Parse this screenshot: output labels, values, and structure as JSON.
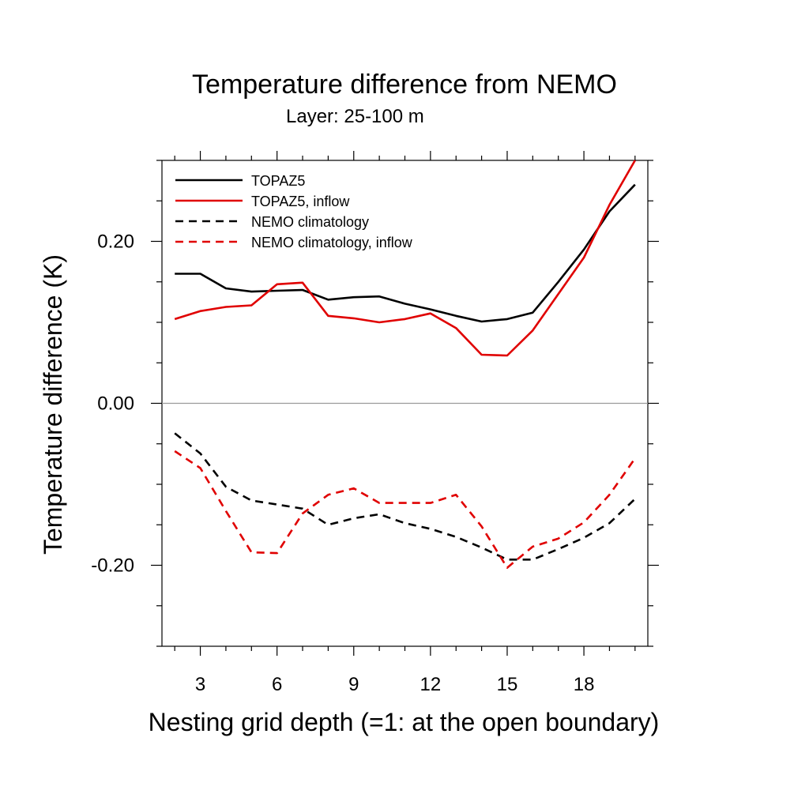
{
  "chart_data": {
    "type": "line",
    "title": "Temperature difference from NEMO",
    "subtitle": "Layer: 25-100 m",
    "xlabel": "Nesting grid depth (=1: at the open boundary)",
    "ylabel": "Temperature difference (K)",
    "xlim": [
      1.5,
      20.5
    ],
    "ylim": [
      -0.3,
      0.3
    ],
    "x_ticks": [
      3,
      6,
      9,
      12,
      15,
      18
    ],
    "x_tick_labels": [
      "3",
      "6",
      "9",
      "12",
      "15",
      "18"
    ],
    "y_ticks": [
      0.2,
      0.0,
      -0.2
    ],
    "y_tick_labels": [
      "0.20",
      "0.00",
      "-0.20"
    ],
    "zero_line": true,
    "grid": false,
    "legend_position": "top-left",
    "x": [
      2,
      3,
      4,
      5,
      6,
      7,
      8,
      9,
      10,
      11,
      12,
      13,
      14,
      15,
      16,
      17,
      18,
      19,
      20
    ],
    "series": [
      {
        "name": "TOPAZ5",
        "color": "#000000",
        "dash": "solid",
        "values": [
          0.16,
          0.16,
          0.142,
          0.138,
          0.139,
          0.14,
          0.128,
          0.131,
          0.132,
          0.123,
          0.116,
          0.108,
          0.101,
          0.104,
          0.112,
          0.15,
          0.19,
          0.237,
          0.27
        ]
      },
      {
        "name": "TOPAZ5, inflow",
        "color": "#e00000",
        "dash": "solid",
        "values": [
          0.104,
          0.114,
          0.119,
          0.121,
          0.147,
          0.149,
          0.108,
          0.105,
          0.1,
          0.104,
          0.111,
          0.093,
          0.06,
          0.059,
          0.09,
          0.135,
          0.18,
          0.245,
          0.3
        ]
      },
      {
        "name": "NEMO climatology",
        "color": "#000000",
        "dash": "dashed",
        "values": [
          -0.037,
          -0.062,
          -0.103,
          -0.12,
          -0.125,
          -0.13,
          -0.15,
          -0.142,
          -0.137,
          -0.148,
          -0.155,
          -0.165,
          -0.178,
          -0.193,
          -0.193,
          -0.18,
          -0.166,
          -0.148,
          -0.118
        ]
      },
      {
        "name": "NEMO climatology, inflow",
        "color": "#e00000",
        "dash": "dashed",
        "values": [
          -0.059,
          -0.08,
          -0.133,
          -0.184,
          -0.185,
          -0.136,
          -0.113,
          -0.105,
          -0.123,
          -0.123,
          -0.123,
          -0.113,
          -0.152,
          -0.203,
          -0.177,
          -0.167,
          -0.147,
          -0.113,
          -0.068
        ]
      }
    ]
  }
}
